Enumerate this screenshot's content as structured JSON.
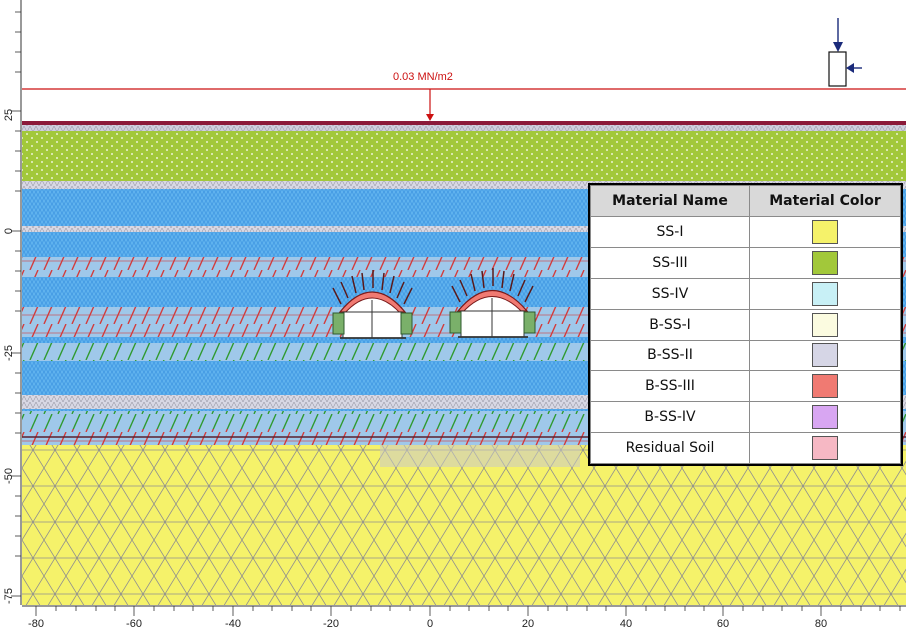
{
  "load": {
    "label": "0.03 MN/m2",
    "color": "#cc1111"
  },
  "axis": {
    "x_ticks": [
      "-80",
      "-60",
      "-40",
      "-20",
      "0",
      "20",
      "40",
      "60",
      "80"
    ],
    "y_ticks": [
      "25",
      "0",
      "-25",
      "-50",
      "-75"
    ]
  },
  "legend": {
    "header_name": "Material Name",
    "header_color": "Material Color",
    "items": [
      {
        "name": "SS-I",
        "color": "#f5f26a"
      },
      {
        "name": "SS-III",
        "color": "#a2c83a"
      },
      {
        "name": "SS-IV",
        "color": "#c8f0f6"
      },
      {
        "name": "B-SS-I",
        "color": "#fbfbe0"
      },
      {
        "name": "B-SS-II",
        "color": "#d6d6e6"
      },
      {
        "name": "B-SS-III",
        "color": "#f07a72"
      },
      {
        "name": "B-SS-IV",
        "color": "#d8a6f2"
      },
      {
        "name": "Residual Soil",
        "color": "#f6b8c4"
      }
    ]
  },
  "colors": {
    "surface_line": "#8b1a3a",
    "mesh_line": "#9a9a9a",
    "blue_mesh": "#4aa0e8",
    "bolt_red": "#d23c3c",
    "bolt_green": "#3aa03a",
    "soil_yellow": "#f5f26a",
    "soil_green": "#a2c83a"
  }
}
